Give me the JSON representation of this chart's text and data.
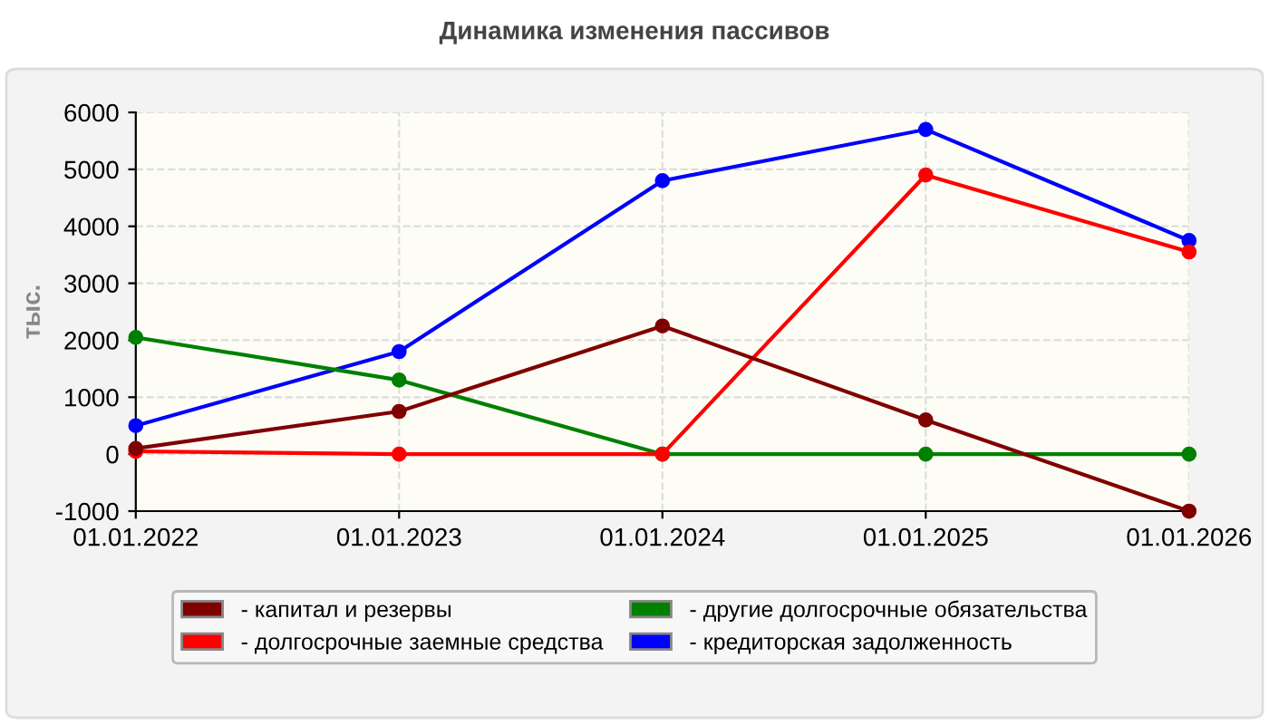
{
  "chart_data": {
    "type": "line",
    "title": "Динамика изменения пассивов",
    "ylabel": "тыс.",
    "categories": [
      "01.01.2022",
      "01.01.2023",
      "01.01.2024",
      "01.01.2025",
      "01.01.2026"
    ],
    "series": [
      {
        "name": "- капитал и резервы",
        "color": "#800000",
        "values": [
          100,
          750,
          2250,
          600,
          -1000
        ]
      },
      {
        "name": "- долгосрочные заемные средства",
        "color": "#ff0000",
        "values": [
          50,
          0,
          0,
          4900,
          3550
        ]
      },
      {
        "name": "- другие долгосрочные обязательства",
        "color": "#008000",
        "values": [
          2050,
          1300,
          0,
          0,
          0
        ]
      },
      {
        "name": "- кредиторская задолженность",
        "color": "#0000ff",
        "values": [
          500,
          1800,
          4800,
          5700,
          3750
        ]
      }
    ],
    "ylim": [
      -1000,
      6000
    ],
    "yticks": [
      -1000,
      0,
      1000,
      2000,
      3000,
      4000,
      5000,
      6000
    ],
    "grid": true,
    "legend": "bottom",
    "marker": "circle",
    "line_style": "solid"
  }
}
